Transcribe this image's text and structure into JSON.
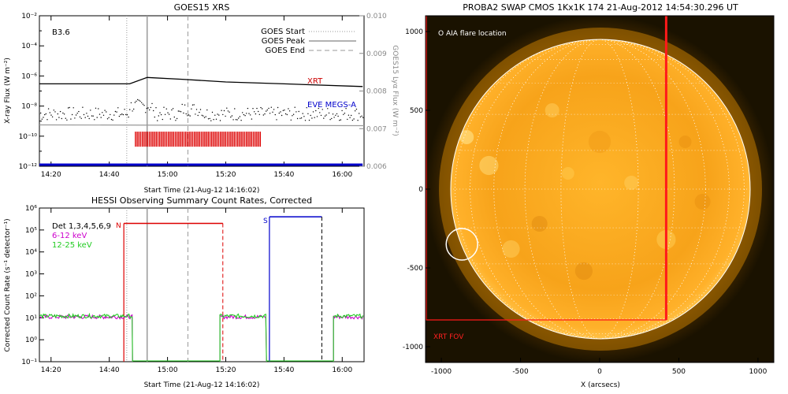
{
  "goes": {
    "title": "GOES15 XRS",
    "ylabel": "X-ray Flux (W m⁻²)",
    "ylabel2": "GOES15 Lyα Flux (W m⁻²)",
    "xlabel": "Start Time (21-Aug-12 14:16:02)",
    "class_label": "B3.6",
    "legend": [
      "GOES Start",
      "GOES Peak",
      "GOES End"
    ],
    "xrt_label": "XRT",
    "eve_label": "EVE MEGS-A",
    "colors": {
      "xrt": "#cc0000",
      "eve": "#0000cc",
      "grid": "#888888"
    }
  },
  "hessi": {
    "title": "HESSI Observing Summary Count Rates, Corrected",
    "ylabel": "Corrected Count Rate (s⁻¹ detector⁻¹)",
    "xlabel": "Start Time (21-Aug-12 14:16:02)",
    "legend": [
      "Det 1,3,4,5,6,9",
      "6-12 keV",
      "12-25 keV"
    ],
    "flags": {
      "night": "N",
      "saa": "S"
    },
    "colors": {
      "low": "#cc00cc",
      "high": "#22cc22",
      "night": "#dd0000",
      "saa": "#0000cc"
    }
  },
  "swap": {
    "title": "PROBA2 SWAP CMOS 1Kx1K 174 21-Aug-2012 14:54:30.296 UT",
    "xlabel": "X (arcsecs)",
    "aia_label": "O AIA flare location",
    "xrt_fov_label": "XRT FOV",
    "colors": {
      "fov": "#ff1a1a",
      "limb": "#ffffff",
      "disk_core": "#ffb020",
      "disk_edge": "#ff9000"
    }
  },
  "chart_data": [
    {
      "type": "line",
      "title": "GOES15 XRS",
      "xlabel": "Start Time (21-Aug-12 14:16:02)",
      "ylabel": "X-ray Flux (W m⁻²)",
      "y2label": "GOES15 Lyα Flux (W m⁻²)",
      "x_ticks": [
        "14:20",
        "14:40",
        "15:00",
        "15:20",
        "15:40",
        "16:00"
      ],
      "y_ticks": [
        "10^-2",
        "10^-4",
        "10^-6",
        "10^-8",
        "10^-10",
        "10^-12"
      ],
      "y2_ticks": [
        "0.010",
        "0.009",
        "0.008",
        "0.007",
        "0.006"
      ],
      "xlim": [
        "14:16",
        "16:07"
      ],
      "ylim": [
        "1e-12",
        "1e-2"
      ],
      "y2lim": [
        0.006,
        0.01
      ],
      "yscale": "log",
      "event_times": {
        "start": "14:46",
        "peak": "14:53",
        "end": "15:07"
      },
      "series": [
        {
          "name": "XRT",
          "x": [
            "14:16",
            "14:47",
            "14:53",
            "15:05",
            "15:20",
            "15:40",
            "16:07"
          ],
          "y": [
            3e-07,
            3e-07,
            8e-07,
            6e-07,
            4e-07,
            3e-07,
            2e-07
          ]
        },
        {
          "name": "EVE MEGS-A",
          "x": [
            "14:16",
            "16:07"
          ],
          "y": [
            1e-12,
            1e-12
          ]
        }
      ],
      "xrt_coverage": [
        "14:49",
        "15:32"
      ]
    },
    {
      "type": "line",
      "title": "HESSI Observing Summary Count Rates, Corrected",
      "xlabel": "Start Time (21-Aug-12 14:16:02)",
      "ylabel": "Corrected Count Rate (s⁻¹ detector⁻¹)",
      "x_ticks": [
        "14:20",
        "14:40",
        "15:00",
        "15:20",
        "15:40",
        "16:00"
      ],
      "y_ticks": [
        "10^6",
        "10^5",
        "10^4",
        "10^3",
        "10^2",
        "10^1",
        "10^0",
        "10^-1"
      ],
      "xlim": [
        "14:16",
        "16:07"
      ],
      "ylim": [
        0.1,
        1000000
      ],
      "yscale": "log",
      "series": [
        {
          "name": "6-12 keV",
          "x": [
            "14:16",
            "14:48",
            "15:18",
            "15:34",
            "15:57",
            "16:07"
          ],
          "y": [
            12,
            11,
            12,
            0.1,
            11,
            11
          ]
        },
        {
          "name": "12-25 keV",
          "x": [
            "14:16",
            "14:48",
            "15:18",
            "15:34",
            "15:57",
            "16:07"
          ],
          "y": [
            13,
            12,
            11,
            0.1,
            12,
            11
          ]
        }
      ],
      "night_interval": [
        "14:45",
        "15:19"
      ],
      "saa_interval": [
        "15:35",
        "15:53"
      ]
    },
    {
      "type": "heatmap",
      "title": "PROBA2 SWAP CMOS 1Kx1K 174 21-Aug-2012 14:54:30.296 UT",
      "xlabel": "X (arcsecs)",
      "x_ticks": [
        "-1000",
        "-500",
        "0",
        "500",
        "1000"
      ],
      "y_ticks": [
        "1000",
        "500",
        "0",
        "-500",
        "-1000"
      ],
      "xlim": [
        -1100,
        1100
      ],
      "ylim": [
        -1100,
        1100
      ],
      "solar_radius": 945,
      "aia_flare_location": [
        -870,
        -350
      ],
      "xrt_fov": {
        "x": [
          -1100,
          420
        ],
        "y": [
          -830,
          1100
        ]
      }
    }
  ]
}
